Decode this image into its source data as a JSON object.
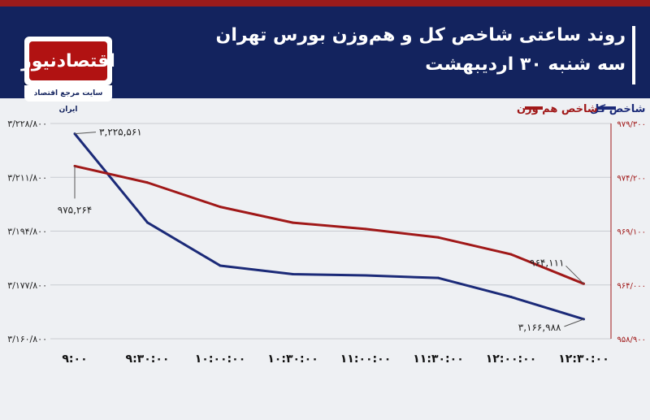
{
  "header": {
    "title_line1": "روند ساعتی شاخص کل و هم‌وزن بورس تهران",
    "title_line2": "سه شنبه ۳۰ اردیبهشت"
  },
  "logo": {
    "text": "اقتصادنیوز",
    "subtitle": "سایت مرجع اقتصاد ایران"
  },
  "colors": {
    "header_bg": "#13235e",
    "accent_red": "#9b1b1b",
    "series_kol": "#1b2a78",
    "series_hamvazn": "#a01818"
  },
  "chart_data": {
    "type": "line",
    "categories": [
      "۹:۰۰",
      "۹:۳۰:۰۰",
      "۱۰:۰۰:۰۰",
      "۱۰:۳۰:۰۰",
      "۱۱:۰۰:۰۰",
      "۱۱:۳۰:۰۰",
      "۱۲:۰۰:۰۰",
      "۱۲:۳۰:۰۰"
    ],
    "x": [
      0,
      0.5,
      1.5,
      2.5,
      3.5,
      4.5,
      5.5,
      6.5,
      7.0
    ],
    "series": [
      {
        "name": "شاخص کل",
        "axis": "left",
        "color": "#1b2a78",
        "x": [
          0,
          1,
          2,
          3,
          4,
          5,
          6,
          7
        ],
        "values": [
          3225561,
          3197500,
          3183900,
          3181200,
          3180800,
          3180000,
          3174000,
          3166988
        ]
      },
      {
        "name": "شاخص هم وزن",
        "axis": "right",
        "color": "#a01818",
        "x": [
          0,
          1,
          2,
          3,
          4,
          5,
          6,
          7
        ],
        "values": [
          975264,
          973700,
          971400,
          969900,
          969300,
          968500,
          966900,
          964111
        ]
      }
    ],
    "y_left": {
      "ticks": [
        3160800,
        3177800,
        3194800,
        3211800,
        3228800
      ],
      "tick_labels": [
        "۳/۱۶۰/۸۰۰",
        "۳/۱۷۷/۸۰۰",
        "۳/۱۹۴/۸۰۰",
        "۳/۲۱۱/۸۰۰",
        "۳/۲۲۸/۸۰۰"
      ],
      "ylim": [
        3160800,
        3228800
      ]
    },
    "y_right": {
      "ticks": [
        958900,
        964000,
        969100,
        974200,
        979300
      ],
      "tick_labels": [
        "۹۵۸/۹۰۰",
        "۹۶۴/۰۰۰",
        "۹۶۹/۱۰۰",
        "۹۷۴/۲۰۰",
        "۹۷۹/۳۰۰"
      ],
      "ylim": [
        958900,
        979300
      ]
    },
    "annotations": [
      {
        "series": 0,
        "index": 0,
        "text": "۳,۲۲۵,۵۶۱"
      },
      {
        "series": 0,
        "index": 7,
        "text": "۳,۱۶۶,۹۸۸"
      },
      {
        "series": 1,
        "index": 0,
        "text": "۹۷۵,۲۶۴"
      },
      {
        "series": 1,
        "index": 7,
        "text": "۹۶۴,۱۱۱"
      }
    ],
    "legend": {
      "position": "top-right"
    },
    "grid": true
  }
}
